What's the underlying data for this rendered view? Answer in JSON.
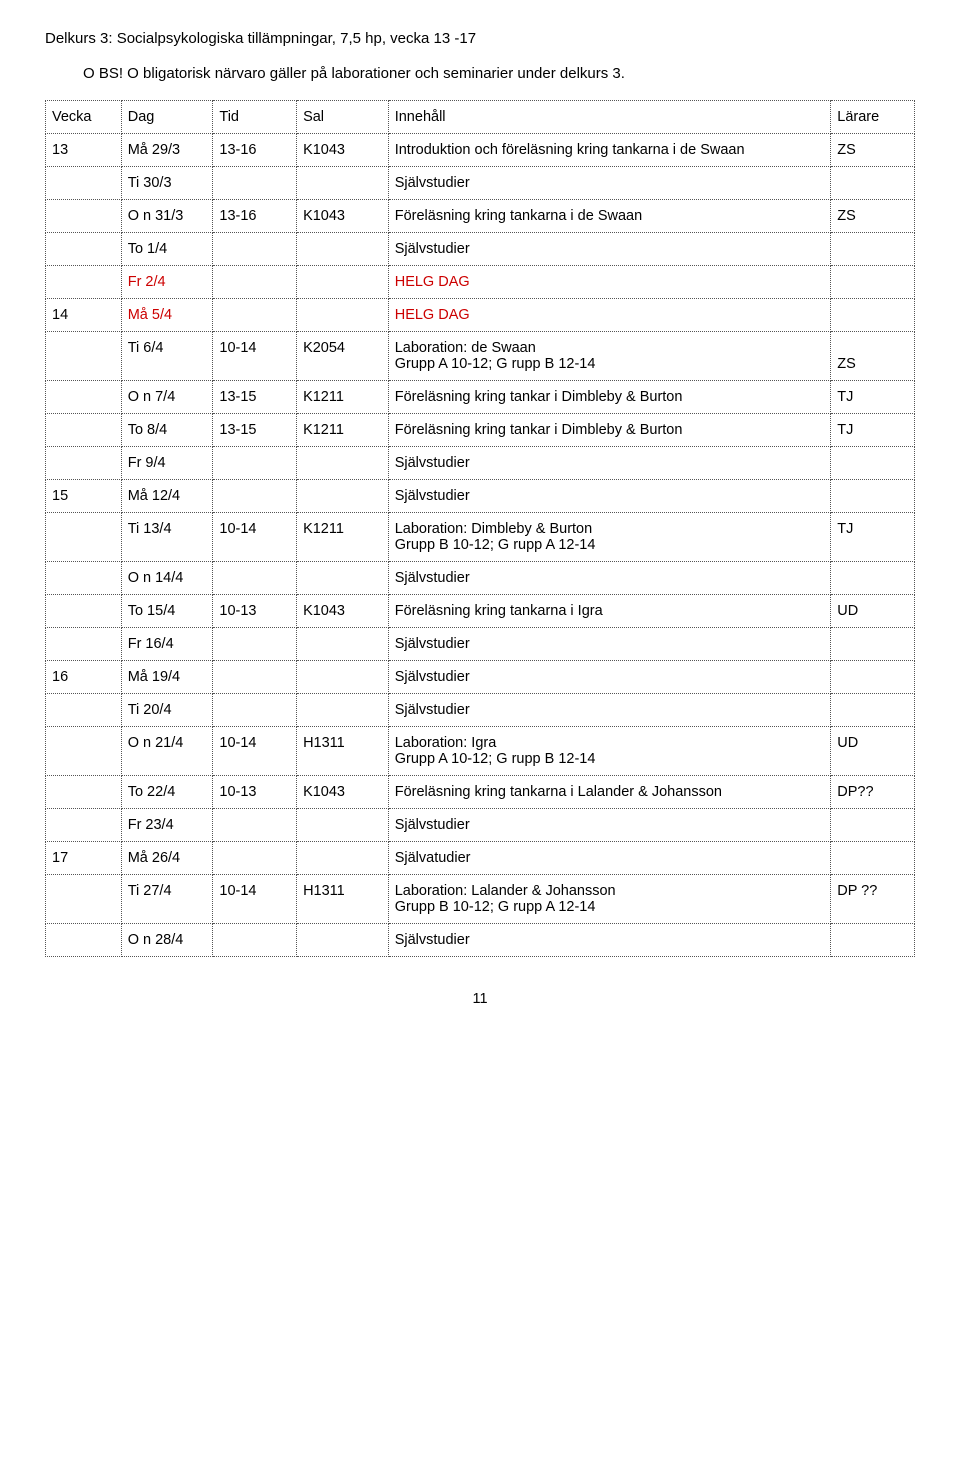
{
  "header": "Delkurs 3: Socialpsykologiska tillämpningar, 7,5 hp, vecka 13 -17",
  "obs": "O BS! O bligatorisk närvaro gäller på laborationer och seminarier under delkurs 3.",
  "pageNumber": "11",
  "columns": {
    "c0": "Vecka",
    "c1": "Dag",
    "c2": "Tid",
    "c3": "Sal",
    "c4": "Innehåll",
    "c5": "Lärare"
  },
  "rows": [
    {
      "c0": "13",
      "c1": "Må 29/3",
      "c2": "13-16",
      "c3": "K1043",
      "c4": "Introduktion och föreläsning kring tankarna i de Swaan",
      "c5": "ZS"
    },
    {
      "c0": "",
      "c1": "Ti 30/3",
      "c2": "",
      "c3": "",
      "c4": "Självstudier",
      "c5": ""
    },
    {
      "c0": "",
      "c1": "O n 31/3",
      "c2": "13-16",
      "c3": "K1043",
      "c4": "Föreläsning kring tankarna i de Swaan",
      "c5": "ZS"
    },
    {
      "c0": "",
      "c1": "To 1/4",
      "c2": "",
      "c3": "",
      "c4": "Självstudier",
      "c5": ""
    },
    {
      "c0": "",
      "c1": "Fr 2/4",
      "c2": "",
      "c3": "",
      "c4": "HELG DAG",
      "c1Red": true,
      "c4Red": true,
      "c5": ""
    },
    {
      "c0": "14",
      "c1": "Må 5/4",
      "c2": "",
      "c3": "",
      "c4": "HELG DAG",
      "c1Red": true,
      "c4Red": true,
      "c5": ""
    },
    {
      "c0": "",
      "c1": "Ti 6/4",
      "c2": "10-14",
      "c3": "K2054",
      "c4": "Laboration: de Swaan\nGrupp A 10-12; G rupp B 12-14",
      "c5": "ZS",
      "c5Align": "bottom"
    },
    {
      "c0": "",
      "c1": "O n 7/4",
      "c2": "13-15",
      "c3": "K1211",
      "c4": "Föreläsning kring tankar i Dimbleby & Burton",
      "c5": "TJ"
    },
    {
      "c0": "",
      "c1": "To 8/4",
      "c2": "13-15",
      "c3": "K1211",
      "c4": "Föreläsning kring tankar i Dimbleby & Burton",
      "c5": "TJ"
    },
    {
      "c0": "",
      "c1": "Fr 9/4",
      "c2": "",
      "c3": "",
      "c4": "Självstudier",
      "c5": ""
    },
    {
      "c0": "15",
      "c1": "Må 12/4",
      "c2": "",
      "c3": "",
      "c4": "Självstudier",
      "c5": ""
    },
    {
      "c0": "",
      "c1": "Ti 13/4",
      "c2": "10-14",
      "c3": "K1211",
      "c4": "Laboration: Dimbleby & Burton\nGrupp B 10-12; G rupp A 12-14",
      "c5": "TJ"
    },
    {
      "c0": "",
      "c1": "O n 14/4",
      "c2": "",
      "c3": "",
      "c4": "Självstudier",
      "c5": ""
    },
    {
      "c0": "",
      "c1": "To 15/4",
      "c2": "10-13",
      "c3": "K1043",
      "c4": "Föreläsning kring tankarna i Igra",
      "c5": "UD"
    },
    {
      "c0": "",
      "c1": "Fr 16/4",
      "c2": "",
      "c3": "",
      "c4": "Självstudier",
      "c5": ""
    },
    {
      "c0": "16",
      "c1": "Må 19/4",
      "c2": "",
      "c3": "",
      "c4": "Självstudier",
      "c5": ""
    },
    {
      "c0": "",
      "c1": "Ti 20/4",
      "c2": "",
      "c3": "",
      "c4": "Självstudier",
      "c5": ""
    },
    {
      "c0": "",
      "c1": "O n 21/4",
      "c2": "10-14",
      "c3": "H1311",
      "c4": "Laboration: Igra\nGrupp A 10-12; G rupp B 12-14",
      "c5": "UD"
    },
    {
      "c0": "",
      "c1": "To 22/4",
      "c2": "10-13",
      "c3": "K1043",
      "c4": "Föreläsning kring tankarna i Lalander & Johansson",
      "c5": "DP??",
      "c5Align": "bottom"
    },
    {
      "c0": "",
      "c1": "Fr 23/4",
      "c2": "",
      "c3": "",
      "c4": "Självstudier",
      "c5": ""
    },
    {
      "c0": "17",
      "c1": "Må 26/4",
      "c2": "",
      "c3": "",
      "c4": "Självatudier",
      "c5": ""
    },
    {
      "c0": "",
      "c1": "Ti 27/4",
      "c2": "10-14",
      "c3": "H1311",
      "c4": "Laboration: Lalander & Johansson\nGrupp B 10-12; G rupp A 12-14",
      "c5": "DP ??"
    },
    {
      "c0": "",
      "c1": "O n 28/4",
      "c2": "",
      "c3": "",
      "c4": "Självstudier",
      "c5": ""
    }
  ]
}
